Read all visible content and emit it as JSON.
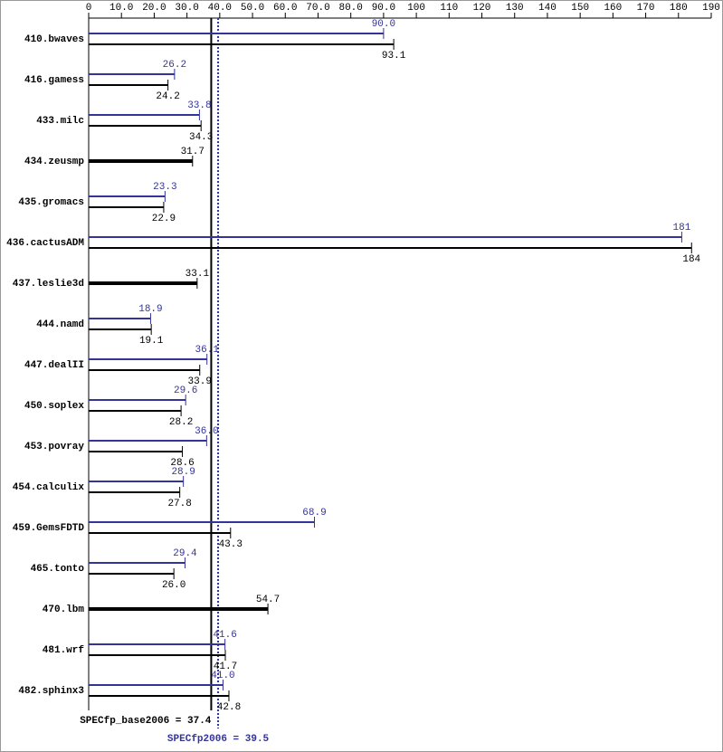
{
  "chart_data": {
    "type": "spec-bar",
    "categories": [
      "410.bwaves",
      "416.gamess",
      "433.milc",
      "434.zeusmp",
      "435.gromacs",
      "436.cactusADM",
      "437.leslie3d",
      "444.namd",
      "447.dealII",
      "450.soplex",
      "453.povray",
      "454.calculix",
      "459.GemsFDTD",
      "465.tonto",
      "470.lbm",
      "481.wrf",
      "482.sphinx3"
    ],
    "series": [
      {
        "color": "#333399",
        "position": "above",
        "values": [
          90.0,
          26.2,
          33.8,
          null,
          23.3,
          181,
          null,
          18.9,
          36.1,
          29.6,
          36.0,
          28.9,
          68.9,
          29.4,
          null,
          41.6,
          41.0
        ],
        "value_labels": [
          "90.0",
          "26.2",
          "33.8",
          null,
          "23.3",
          "181",
          null,
          "18.9",
          "36.1",
          "29.6",
          "36.0",
          "28.9",
          "68.9",
          "29.4",
          null,
          "41.6",
          "41.0"
        ]
      },
      {
        "color": "#000000",
        "position": "below",
        "values": [
          93.1,
          24.2,
          34.3,
          31.7,
          22.9,
          184,
          33.1,
          19.1,
          33.9,
          28.2,
          28.6,
          27.8,
          43.3,
          26.0,
          54.7,
          41.7,
          42.8
        ],
        "value_labels": [
          "93.1",
          "24.2",
          "34.3",
          "31.7",
          "22.9",
          "184",
          "33.1",
          "19.1",
          "33.9",
          "28.2",
          "28.6",
          "27.8",
          "43.3",
          "26.0",
          "54.7",
          "41.7",
          "42.8"
        ]
      }
    ],
    "xlim": [
      0,
      190
    ],
    "xticks": [
      0,
      {
        "value": 10,
        "label": "10.0"
      },
      {
        "value": 20,
        "label": "20.0"
      },
      {
        "value": 30,
        "label": "30.0"
      },
      {
        "value": 40,
        "label": "40.0"
      },
      {
        "value": 50,
        "label": "50.0"
      },
      {
        "value": 60,
        "label": "60.0"
      },
      {
        "value": 70,
        "label": "70.0"
      },
      {
        "value": 80,
        "label": "80.0"
      },
      {
        "value": 90,
        "label": "90.0"
      },
      100,
      110,
      120,
      130,
      140,
      150,
      160,
      170,
      180,
      190
    ],
    "reference_lines": [
      {
        "label": "SPECfp_base2006 = 37.4",
        "value": 37.4,
        "color": "#000000",
        "style": "solid"
      },
      {
        "label": "SPECfp2006 = 39.5",
        "value": 39.5,
        "color": "#333399",
        "style": "dotted"
      }
    ]
  }
}
